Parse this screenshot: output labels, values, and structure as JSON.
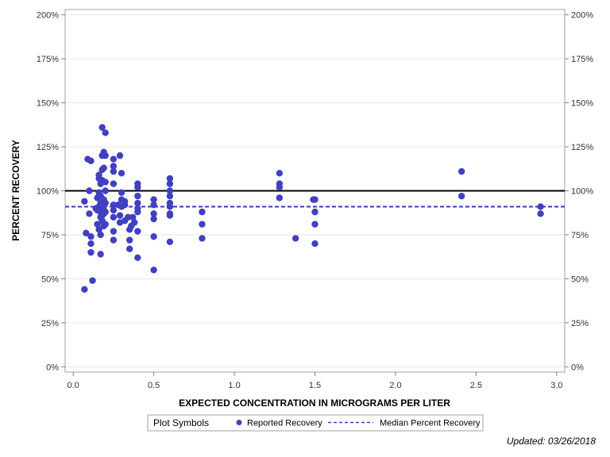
{
  "chart_data": {
    "type": "scatter",
    "title": "",
    "xlabel": "EXPECTED CONCENTRATION IN MICROGRAMS PER LITER",
    "ylabel": "PERCENT RECOVERY",
    "xlim": [
      -0.05,
      3.05
    ],
    "ylim": [
      -3,
      203
    ],
    "x_ticks": [
      0,
      0.5,
      1,
      1.5,
      2,
      2.5,
      3
    ],
    "x_tick_labels": [
      "0.0",
      "0.5",
      "1.0",
      "1.5",
      "2.0",
      "2.5",
      "3.0"
    ],
    "y_ticks": [
      0,
      25,
      50,
      75,
      100,
      125,
      150,
      175,
      200
    ],
    "y_tick_labels": [
      "0%",
      "25%",
      "50%",
      "75%",
      "100%",
      "125%",
      "150%",
      "175%",
      "200%"
    ],
    "reference_line": {
      "y": 100,
      "color": "#000000"
    },
    "median_line": {
      "name": "Median Percent Recovery",
      "y": 91,
      "color": "#3a3ac8"
    },
    "series": [
      {
        "name": "Reported Recovery",
        "color": "#4040c0",
        "points": [
          [
            0.07,
            44
          ],
          [
            0.07,
            94
          ],
          [
            0.08,
            76
          ],
          [
            0.09,
            118
          ],
          [
            0.1,
            100
          ],
          [
            0.1,
            87
          ],
          [
            0.11,
            117
          ],
          [
            0.11,
            74
          ],
          [
            0.11,
            70
          ],
          [
            0.11,
            65
          ],
          [
            0.12,
            49
          ],
          [
            0.14,
            90
          ],
          [
            0.15,
            96
          ],
          [
            0.15,
            89
          ],
          [
            0.15,
            81
          ],
          [
            0.16,
            109
          ],
          [
            0.16,
            107
          ],
          [
            0.16,
            99
          ],
          [
            0.16,
            91
          ],
          [
            0.16,
            78
          ],
          [
            0.17,
            104
          ],
          [
            0.17,
            97
          ],
          [
            0.17,
            93
          ],
          [
            0.17,
            88
          ],
          [
            0.17,
            85
          ],
          [
            0.17,
            75
          ],
          [
            0.17,
            64
          ],
          [
            0.18,
            136
          ],
          [
            0.18,
            120
          ],
          [
            0.18,
            112
          ],
          [
            0.18,
            106
          ],
          [
            0.18,
            90
          ],
          [
            0.18,
            86
          ],
          [
            0.18,
            83
          ],
          [
            0.19,
            122
          ],
          [
            0.19,
            113
          ],
          [
            0.19,
            95
          ],
          [
            0.19,
            92
          ],
          [
            0.19,
            89
          ],
          [
            0.19,
            87
          ],
          [
            0.19,
            80
          ],
          [
            0.2,
            133
          ],
          [
            0.2,
            120
          ],
          [
            0.2,
            105
          ],
          [
            0.2,
            100
          ],
          [
            0.2,
            93
          ],
          [
            0.2,
            88
          ],
          [
            0.2,
            81
          ],
          [
            0.25,
            118
          ],
          [
            0.25,
            114
          ],
          [
            0.25,
            111
          ],
          [
            0.25,
            104
          ],
          [
            0.25,
            92
          ],
          [
            0.25,
            89
          ],
          [
            0.25,
            85
          ],
          [
            0.25,
            77
          ],
          [
            0.25,
            72
          ],
          [
            0.28,
            92
          ],
          [
            0.29,
            120
          ],
          [
            0.29,
            86
          ],
          [
            0.29,
            82
          ],
          [
            0.3,
            110
          ],
          [
            0.3,
            99
          ],
          [
            0.3,
            95
          ],
          [
            0.3,
            91
          ],
          [
            0.32,
            94
          ],
          [
            0.32,
            92
          ],
          [
            0.32,
            83
          ],
          [
            0.34,
            85
          ],
          [
            0.35,
            78
          ],
          [
            0.35,
            72
          ],
          [
            0.35,
            67
          ],
          [
            0.36,
            80
          ],
          [
            0.37,
            85
          ],
          [
            0.38,
            82
          ],
          [
            0.4,
            104
          ],
          [
            0.4,
            102
          ],
          [
            0.4,
            97
          ],
          [
            0.4,
            93
          ],
          [
            0.4,
            90
          ],
          [
            0.4,
            88
          ],
          [
            0.4,
            77
          ],
          [
            0.4,
            62
          ],
          [
            0.5,
            95
          ],
          [
            0.5,
            92
          ],
          [
            0.5,
            87
          ],
          [
            0.5,
            84
          ],
          [
            0.5,
            74
          ],
          [
            0.5,
            55
          ],
          [
            0.6,
            107
          ],
          [
            0.6,
            104
          ],
          [
            0.6,
            100
          ],
          [
            0.6,
            97
          ],
          [
            0.6,
            93
          ],
          [
            0.6,
            91
          ],
          [
            0.6,
            87
          ],
          [
            0.6,
            86
          ],
          [
            0.6,
            71
          ],
          [
            0.8,
            88
          ],
          [
            0.8,
            81
          ],
          [
            0.8,
            73
          ],
          [
            1.28,
            110
          ],
          [
            1.28,
            104
          ],
          [
            1.28,
            102
          ],
          [
            1.28,
            96
          ],
          [
            1.38,
            73
          ],
          [
            1.49,
            95
          ],
          [
            1.5,
            95
          ],
          [
            1.5,
            88
          ],
          [
            1.5,
            81
          ],
          [
            1.5,
            70
          ],
          [
            2.41,
            111
          ],
          [
            2.41,
            97
          ],
          [
            2.9,
            91
          ],
          [
            2.9,
            87
          ]
        ]
      }
    ]
  },
  "legend": {
    "title": "Plot Symbols",
    "items": [
      {
        "label": "Reported Recovery"
      },
      {
        "label": "Median Percent Recovery"
      }
    ]
  },
  "footnote": "Updated: 03/26/2018"
}
